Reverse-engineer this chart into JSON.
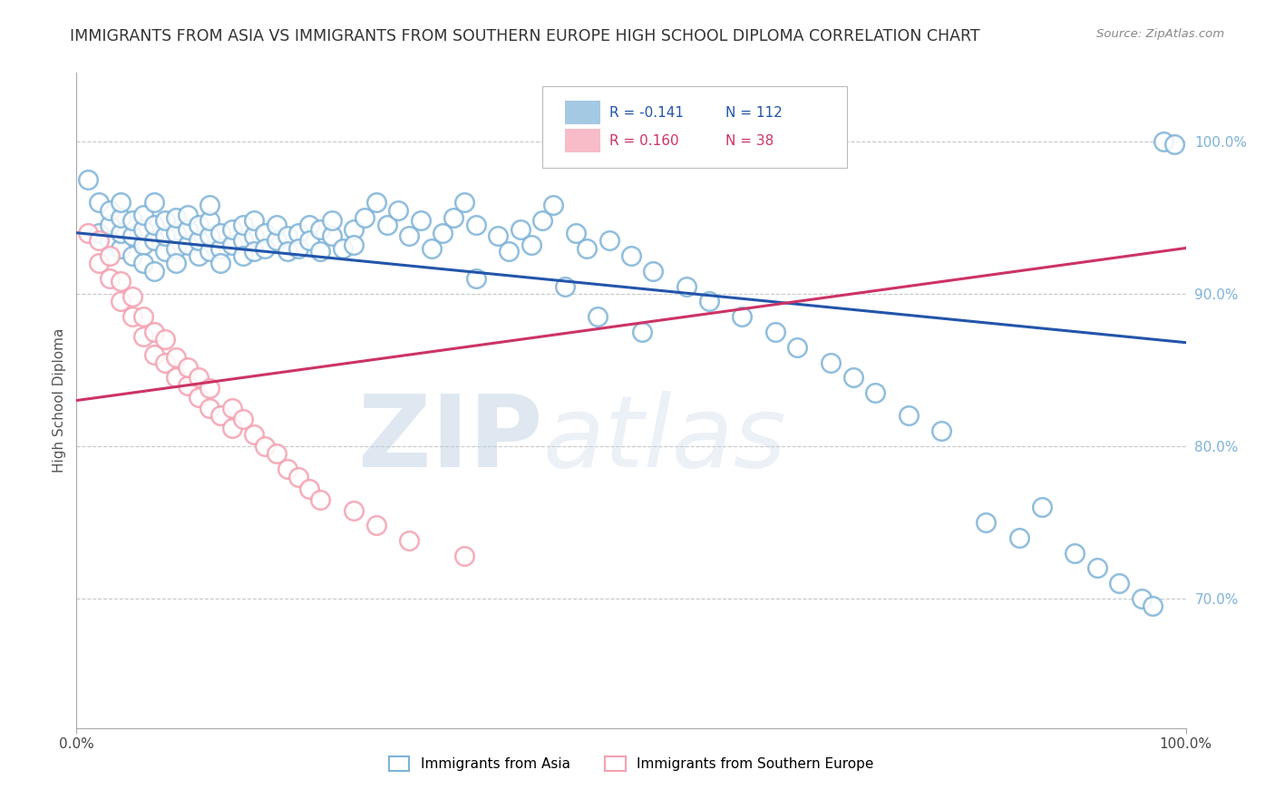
{
  "title": "IMMIGRANTS FROM ASIA VS IMMIGRANTS FROM SOUTHERN EUROPE HIGH SCHOOL DIPLOMA CORRELATION CHART",
  "source": "Source: ZipAtlas.com",
  "ylabel": "High School Diploma",
  "right_yticks": [
    0.7,
    0.8,
    0.9,
    1.0
  ],
  "right_yticklabels": [
    "70.0%",
    "80.0%",
    "90.0%",
    "100.0%"
  ],
  "xlim": [
    0.0,
    1.0
  ],
  "ylim": [
    0.615,
    1.045
  ],
  "blue_color": "#7EB3D8",
  "pink_color": "#F4A0B0",
  "blue_edge_color": "#5A9AC8",
  "pink_edge_color": "#E87090",
  "blue_line_color": "#2255AA",
  "pink_line_color": "#CC3366",
  "legend_R_blue": "-0.141",
  "legend_N_blue": "112",
  "legend_R_pink": "0.160",
  "legend_N_pink": "38",
  "watermark_zip": "ZIP",
  "watermark_atlas": "atlas",
  "background_color": "#ffffff",
  "grid_color": "#c8c8c8",
  "blue_scatter_x": [
    0.01,
    0.02,
    0.02,
    0.03,
    0.03,
    0.03,
    0.04,
    0.04,
    0.04,
    0.04,
    0.05,
    0.05,
    0.05,
    0.06,
    0.06,
    0.06,
    0.06,
    0.07,
    0.07,
    0.07,
    0.07,
    0.08,
    0.08,
    0.08,
    0.09,
    0.09,
    0.09,
    0.09,
    0.1,
    0.1,
    0.1,
    0.11,
    0.11,
    0.11,
    0.12,
    0.12,
    0.12,
    0.12,
    0.13,
    0.13,
    0.13,
    0.14,
    0.14,
    0.15,
    0.15,
    0.15,
    0.16,
    0.16,
    0.16,
    0.17,
    0.17,
    0.18,
    0.18,
    0.19,
    0.19,
    0.2,
    0.2,
    0.21,
    0.21,
    0.22,
    0.22,
    0.23,
    0.23,
    0.24,
    0.25,
    0.25,
    0.26,
    0.27,
    0.28,
    0.29,
    0.3,
    0.31,
    0.32,
    0.33,
    0.34,
    0.35,
    0.36,
    0.38,
    0.39,
    0.4,
    0.41,
    0.42,
    0.43,
    0.45,
    0.46,
    0.48,
    0.5,
    0.52,
    0.55,
    0.57,
    0.6,
    0.63,
    0.65,
    0.68,
    0.7,
    0.72,
    0.75,
    0.78,
    0.82,
    0.85,
    0.87,
    0.9,
    0.92,
    0.94,
    0.96,
    0.97,
    0.98,
    0.99,
    0.36,
    0.44,
    0.47,
    0.51
  ],
  "blue_scatter_y": [
    0.975,
    0.94,
    0.96,
    0.935,
    0.945,
    0.955,
    0.93,
    0.94,
    0.95,
    0.96,
    0.925,
    0.938,
    0.948,
    0.932,
    0.942,
    0.952,
    0.92,
    0.935,
    0.945,
    0.915,
    0.96,
    0.928,
    0.938,
    0.948,
    0.93,
    0.94,
    0.95,
    0.92,
    0.932,
    0.942,
    0.952,
    0.925,
    0.935,
    0.945,
    0.928,
    0.938,
    0.948,
    0.958,
    0.93,
    0.94,
    0.92,
    0.932,
    0.942,
    0.935,
    0.945,
    0.925,
    0.938,
    0.948,
    0.928,
    0.94,
    0.93,
    0.935,
    0.945,
    0.938,
    0.928,
    0.94,
    0.93,
    0.945,
    0.935,
    0.942,
    0.928,
    0.938,
    0.948,
    0.93,
    0.942,
    0.932,
    0.95,
    0.96,
    0.945,
    0.955,
    0.938,
    0.948,
    0.93,
    0.94,
    0.95,
    0.96,
    0.945,
    0.938,
    0.928,
    0.942,
    0.932,
    0.948,
    0.958,
    0.94,
    0.93,
    0.935,
    0.925,
    0.915,
    0.905,
    0.895,
    0.885,
    0.875,
    0.865,
    0.855,
    0.845,
    0.835,
    0.82,
    0.81,
    0.75,
    0.74,
    0.76,
    0.73,
    0.72,
    0.71,
    0.7,
    0.695,
    1.0,
    0.998,
    0.91,
    0.905,
    0.885,
    0.875
  ],
  "pink_scatter_x": [
    0.01,
    0.02,
    0.02,
    0.03,
    0.03,
    0.04,
    0.04,
    0.05,
    0.05,
    0.06,
    0.06,
    0.07,
    0.07,
    0.08,
    0.08,
    0.09,
    0.09,
    0.1,
    0.1,
    0.11,
    0.11,
    0.12,
    0.12,
    0.13,
    0.14,
    0.14,
    0.15,
    0.16,
    0.17,
    0.18,
    0.19,
    0.2,
    0.21,
    0.22,
    0.25,
    0.27,
    0.3,
    0.35
  ],
  "pink_scatter_y": [
    0.94,
    0.92,
    0.935,
    0.91,
    0.925,
    0.895,
    0.908,
    0.885,
    0.898,
    0.872,
    0.885,
    0.86,
    0.875,
    0.855,
    0.87,
    0.845,
    0.858,
    0.84,
    0.852,
    0.832,
    0.845,
    0.825,
    0.838,
    0.82,
    0.812,
    0.825,
    0.818,
    0.808,
    0.8,
    0.795,
    0.785,
    0.78,
    0.772,
    0.765,
    0.758,
    0.748,
    0.738,
    0.728
  ],
  "blue_trend_x": [
    0.0,
    1.0
  ],
  "blue_trend_y": [
    0.94,
    0.868
  ],
  "pink_trend_x": [
    0.0,
    1.0
  ],
  "pink_trend_y": [
    0.83,
    0.93
  ]
}
